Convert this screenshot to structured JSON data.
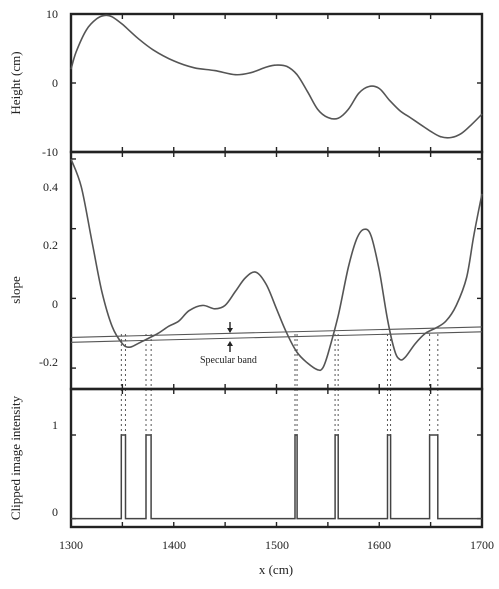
{
  "chart_data": [
    {
      "type": "line",
      "panel": "top",
      "ylabel": "Height (cm)",
      "ylim": [
        -10,
        10
      ],
      "xlim": [
        1300,
        1700
      ],
      "yticks": [
        "10",
        "0",
        "-10"
      ],
      "series": [
        {
          "x": [
            1300,
            1305,
            1315,
            1325,
            1333,
            1340,
            1350,
            1365,
            1380,
            1400,
            1420,
            1440,
            1460,
            1475,
            1490,
            1500,
            1510,
            1520,
            1530,
            1540,
            1550,
            1560,
            1570,
            1580,
            1590,
            1600,
            1610,
            1620,
            1630,
            1640,
            1650,
            1660,
            1670,
            1680,
            1690,
            1700
          ],
          "values": [
            2,
            4.5,
            7.7,
            9.3,
            9.8,
            9.6,
            8.5,
            6.5,
            4.8,
            3.2,
            2.2,
            1.8,
            1.2,
            1.5,
            2.3,
            2.6,
            2.4,
            1.2,
            -1.2,
            -3.8,
            -5.0,
            -5.1,
            -3.8,
            -1.5,
            -0.5,
            -0.8,
            -2.5,
            -4.0,
            -5.0,
            -6.0,
            -7.0,
            -7.8,
            -7.9,
            -7.3,
            -6.0,
            -4.5
          ]
        }
      ]
    },
    {
      "type": "line",
      "panel": "middle",
      "ylabel": "slope",
      "ylim": [
        -0.26,
        0.42
      ],
      "xlim": [
        1300,
        1700
      ],
      "yticks": [
        "0.4",
        "0.2",
        "0",
        "-0.2"
      ],
      "annotations": [
        "Specular band"
      ],
      "series": [
        {
          "x": [
            1300,
            1310,
            1320,
            1330,
            1340,
            1350,
            1357,
            1365,
            1375,
            1385,
            1395,
            1405,
            1415,
            1428,
            1440,
            1450,
            1460,
            1470,
            1480,
            1490,
            1500,
            1510,
            1520,
            1530,
            1540,
            1545,
            1550,
            1560,
            1570,
            1578,
            1585,
            1592,
            1600,
            1608,
            1615,
            1620,
            1625,
            1635,
            1645,
            1655,
            1665,
            1675,
            1685,
            1692,
            1700
          ],
          "values": [
            0.4,
            0.32,
            0.17,
            0.02,
            -0.08,
            -0.13,
            -0.14,
            -0.13,
            -0.115,
            -0.1,
            -0.08,
            -0.065,
            -0.035,
            -0.02,
            -0.03,
            -0.02,
            0.02,
            0.06,
            0.075,
            0.04,
            -0.03,
            -0.1,
            -0.155,
            -0.185,
            -0.205,
            -0.2,
            -0.16,
            -0.05,
            0.09,
            0.17,
            0.198,
            0.18,
            0.08,
            -0.06,
            -0.15,
            -0.175,
            -0.17,
            -0.13,
            -0.1,
            -0.085,
            -0.065,
            -0.02,
            0.06,
            0.18,
            0.3
          ]
        }
      ],
      "band": {
        "upper": {
          "x": [
            1300,
            1700
          ],
          "values": [
            -0.112,
            -0.082
          ]
        },
        "lower": {
          "x": [
            1300,
            1700
          ],
          "values": [
            -0.126,
            -0.096
          ]
        }
      }
    },
    {
      "type": "line",
      "panel": "bottom",
      "ylabel": "Clipped image intensity",
      "xlabel": "x (cm)",
      "ylim": [
        -0.1,
        1.55
      ],
      "xlim": [
        1300,
        1700
      ],
      "yticks": [
        "1",
        "0"
      ],
      "xticks": [
        "1300",
        "1400",
        "1500",
        "1600",
        "1700"
      ],
      "pulses": [
        [
          1349,
          1353
        ],
        [
          1373,
          1378
        ],
        [
          1518,
          1520
        ],
        [
          1557,
          1560
        ],
        [
          1608,
          1611
        ],
        [
          1649,
          1657
        ]
      ],
      "guide_x": [
        1349,
        1353,
        1373,
        1378,
        1518,
        1520,
        1557,
        1560,
        1608,
        1611,
        1649,
        1657
      ]
    }
  ]
}
